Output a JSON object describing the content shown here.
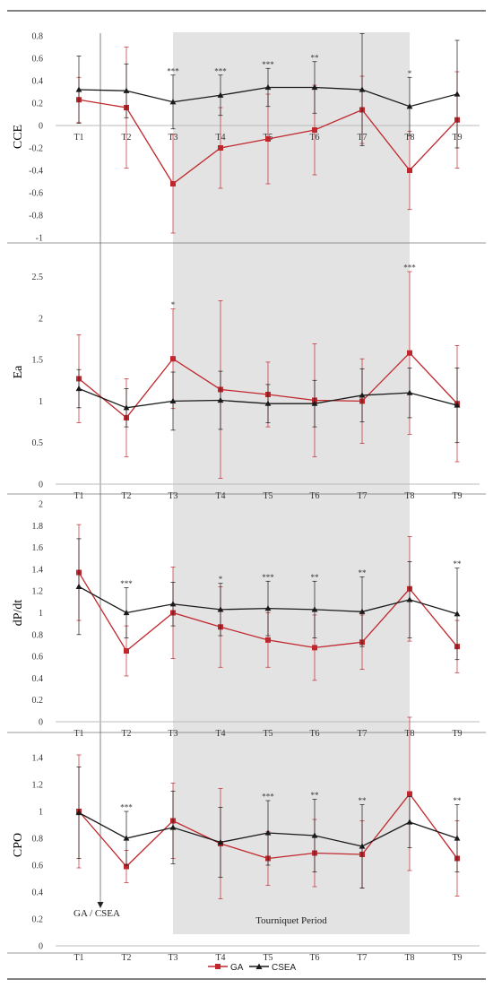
{
  "colors": {
    "ga": "#c0272d",
    "csea": "#1a1a1a",
    "tourniquet_shade": "#e3e3e3",
    "axis": "#bbbbbb"
  },
  "legend": {
    "ga": "GA",
    "csea": "CSEA"
  },
  "annotations": {
    "gacsea": "GA / CSEA",
    "tourniquet": "Tourniquet Period"
  },
  "chart_data": [
    {
      "type": "line",
      "ylabel": "CCE",
      "categories": [
        "T1",
        "T2",
        "T3",
        "T4",
        "T5",
        "T6",
        "T7",
        "T8",
        "T9"
      ],
      "ylim": [
        -1.0,
        0.8
      ],
      "yticks": [
        -1,
        -0.8,
        -0.6,
        -0.4,
        -0.2,
        0,
        0.2,
        0.4,
        0.6,
        0.8
      ],
      "ytick_labels": [
        "-1",
        "-0.8",
        "-0.6",
        "-0.4",
        "-0.2",
        "0",
        "0.2",
        "0.4",
        "0.6",
        "0.8"
      ],
      "x_labels_at_zero": true,
      "series": [
        {
          "name": "GA",
          "values": [
            0.23,
            0.16,
            -0.52,
            -0.2,
            -0.12,
            -0.04,
            0.14,
            -0.4,
            0.05
          ],
          "err": [
            0.2,
            0.54,
            0.44,
            0.36,
            0.4,
            0.4,
            0.3,
            0.35,
            0.43
          ]
        },
        {
          "name": "CSEA",
          "values": [
            0.32,
            0.31,
            0.21,
            0.27,
            0.34,
            0.34,
            0.32,
            0.17,
            0.28
          ],
          "err": [
            0.3,
            0.24,
            0.24,
            0.18,
            0.17,
            0.23,
            0.5,
            0.26,
            0.48
          ]
        }
      ],
      "significance": [
        "",
        "",
        "***",
        "***",
        "***",
        "**",
        "",
        "*",
        ""
      ]
    },
    {
      "type": "line",
      "ylabel": "Ea",
      "categories": [
        "T1",
        "T2",
        "T3",
        "T4",
        "T5",
        "T6",
        "T7",
        "T8",
        "T9"
      ],
      "ylim": [
        0,
        2.7
      ],
      "yticks": [
        0,
        0.5,
        1,
        1.5,
        2,
        2.5
      ],
      "ytick_labels": [
        "0",
        "0.5",
        "1",
        "1.5",
        "2",
        "2.5"
      ],
      "series": [
        {
          "name": "GA",
          "values": [
            1.27,
            0.8,
            1.51,
            1.14,
            1.08,
            1.01,
            1.0,
            1.58,
            0.97
          ],
          "err": [
            0.53,
            0.47,
            0.6,
            1.07,
            0.39,
            0.68,
            0.51,
            0.98,
            0.7
          ]
        },
        {
          "name": "CSEA",
          "values": [
            1.15,
            0.92,
            1.0,
            1.01,
            0.97,
            0.97,
            1.07,
            1.1,
            0.95
          ],
          "err": [
            0.23,
            0.23,
            0.35,
            0.35,
            0.23,
            0.28,
            0.32,
            0.3,
            0.45
          ]
        }
      ],
      "significance": [
        "",
        "",
        "*",
        "",
        "",
        "",
        "",
        "***",
        ""
      ]
    },
    {
      "type": "line",
      "ylabel": "dP/dt",
      "categories": [
        "T1",
        "T2",
        "T3",
        "T4",
        "T5",
        "T6",
        "T7",
        "T8",
        "T9"
      ],
      "ylim": [
        0,
        2.0
      ],
      "yticks": [
        0,
        0.2,
        0.4,
        0.6,
        0.8,
        1,
        1.2,
        1.4,
        1.6,
        1.8,
        2
      ],
      "ytick_labels": [
        "0",
        "0.2",
        "0.4",
        "0.6",
        "0.8",
        "1",
        "1.2",
        "1.4",
        "1.6",
        "1.8",
        "2"
      ],
      "series": [
        {
          "name": "GA",
          "values": [
            1.37,
            0.65,
            1.0,
            0.87,
            0.75,
            0.68,
            0.73,
            1.22,
            0.69
          ],
          "err": [
            0.44,
            0.23,
            0.42,
            0.37,
            0.25,
            0.3,
            0.25,
            0.48,
            0.24
          ]
        },
        {
          "name": "CSEA",
          "values": [
            1.24,
            1.0,
            1.08,
            1.03,
            1.04,
            1.03,
            1.01,
            1.12,
            0.99
          ],
          "err": [
            0.44,
            0.23,
            0.2,
            0.24,
            0.25,
            0.26,
            0.32,
            0.35,
            0.42
          ]
        }
      ],
      "significance": [
        "",
        "***",
        "",
        "*",
        "***",
        "**",
        "**",
        "",
        "**"
      ]
    },
    {
      "type": "line",
      "ylabel": "CPO",
      "categories": [
        "T1",
        "T2",
        "T3",
        "T4",
        "T5",
        "T6",
        "T7",
        "T8",
        "T9"
      ],
      "ylim": [
        0,
        1.5
      ],
      "yticks": [
        0,
        0.2,
        0.4,
        0.6,
        0.8,
        1,
        1.2,
        1.4
      ],
      "ytick_labels": [
        "0",
        "0.2",
        "0.4",
        "0.6",
        "0.8",
        "1",
        "1.2",
        "1.4"
      ],
      "series": [
        {
          "name": "GA",
          "values": [
            1.0,
            0.59,
            0.93,
            0.76,
            0.65,
            0.69,
            0.68,
            1.13,
            0.65
          ],
          "err": [
            0.42,
            0.12,
            0.28,
            0.41,
            0.2,
            0.25,
            0.25,
            0.57,
            0.28
          ]
        },
        {
          "name": "CSEA",
          "values": [
            0.99,
            0.8,
            0.88,
            0.77,
            0.84,
            0.82,
            0.74,
            0.92,
            0.8
          ],
          "err": [
            0.34,
            0.2,
            0.27,
            0.26,
            0.24,
            0.27,
            0.31,
            0.19,
            0.25
          ]
        }
      ],
      "significance": [
        "",
        "***",
        "",
        "",
        "***",
        "**",
        "**",
        "",
        "**"
      ]
    }
  ]
}
